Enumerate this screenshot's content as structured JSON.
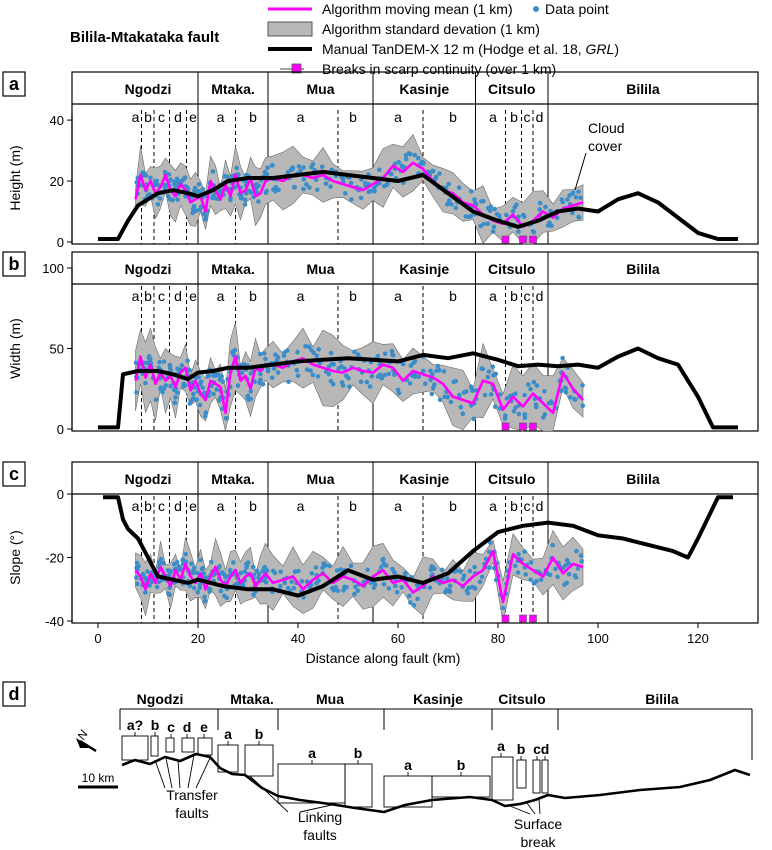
{
  "figure_title": "Bilila-Mtakataka fault",
  "legend": [
    {
      "key": "moving_mean",
      "label": "Algorithm moving mean (1 km)",
      "color": "#ff00ff"
    },
    {
      "key": "data_point",
      "label": "Data point",
      "color": "#3a8dc8"
    },
    {
      "key": "std",
      "label": "Algorithm standard devation (1 km)",
      "color": "#b8b8b8"
    },
    {
      "key": "manual",
      "label_pre": "Manual TanDEM-X 12 m (Hodge et al. 18, ",
      "label_em": "GRL",
      "label_post": ")",
      "color": "#000000"
    },
    {
      "key": "breaks",
      "label": "Breaks in scarp continuity (over 1 km)",
      "color": "#ff00ff"
    }
  ],
  "segments": [
    {
      "name": "Ngodzi",
      "start": 0,
      "end": 20
    },
    {
      "name": "Mtaka.",
      "start": 20,
      "end": 34
    },
    {
      "name": "Mua",
      "start": 34,
      "end": 55
    },
    {
      "name": "Kasinje",
      "start": 55,
      "end": 75.5
    },
    {
      "name": "Citsulo",
      "start": 75.5,
      "end": 90
    },
    {
      "name": "Bilila",
      "start": 90,
      "end": 128
    }
  ],
  "subsegments": [
    {
      "label": "a",
      "x": 7.5
    },
    {
      "label": "b",
      "x": 10
    },
    {
      "label": "c",
      "x": 12.7
    },
    {
      "label": "d",
      "x": 16
    },
    {
      "label": "e",
      "x": 19
    },
    {
      "label": "a",
      "x": 24.5
    },
    {
      "label": "b",
      "x": 31
    },
    {
      "label": "a",
      "x": 40.5
    },
    {
      "label": "b",
      "x": 51
    },
    {
      "label": "a",
      "x": 60
    },
    {
      "label": "b",
      "x": 71
    },
    {
      "label": "a",
      "x": 79
    },
    {
      "label": "b",
      "x": 83.2
    },
    {
      "label": "c",
      "x": 85.8
    },
    {
      "label": "d",
      "x": 88.3
    }
  ],
  "subsegment_dividers": [
    8.7,
    11.2,
    14.3,
    17.7,
    27.5,
    48,
    65,
    81.5,
    84.7,
    87
  ],
  "cloud_cover_annotation": "Cloud\ncover",
  "chart_data": [
    {
      "panel": "a",
      "type": "line",
      "ylabel": "Height (m)",
      "ylim": [
        0,
        42
      ],
      "yticks": [
        0,
        20,
        40
      ],
      "xlim": [
        -5,
        135
      ],
      "grid": false,
      "series": [
        {
          "name": "Manual TanDEM-X 12 m (Hodge et al. 18, GRL)",
          "x": [
            0,
            4,
            6,
            8,
            10,
            12,
            15,
            18,
            20,
            23,
            26,
            30,
            35,
            40,
            45,
            50,
            55,
            60,
            65,
            70,
            75,
            80,
            84,
            88,
            92,
            96,
            100,
            104,
            108,
            112,
            116,
            120,
            124,
            128
          ],
          "values": [
            1,
            1,
            7,
            12,
            14,
            16,
            17,
            16,
            15,
            17,
            20,
            21,
            21,
            22,
            23,
            22,
            21,
            20,
            22,
            16,
            10,
            7,
            5,
            7,
            10,
            11,
            10,
            14,
            16,
            13,
            8,
            3,
            1,
            1
          ]
        },
        {
          "name": "Algorithm moving mean (1 km)",
          "x": [
            7.5,
            8.5,
            9.5,
            10.5,
            11.5,
            12.5,
            13.5,
            14.5,
            15.5,
            16.5,
            17.5,
            18.5,
            19.5,
            20.5,
            21.5,
            22.5,
            23.5,
            24.5,
            25.5,
            26.5,
            27.5,
            28.5,
            29.5,
            30.5,
            31.5,
            32.5,
            33.5,
            35,
            37,
            39,
            41,
            43,
            45,
            47,
            49,
            51,
            53,
            55,
            57,
            59,
            61,
            63,
            65,
            67,
            69,
            71,
            73,
            75,
            77,
            79,
            81,
            83,
            85,
            87,
            89,
            91,
            93,
            95,
            97
          ],
          "values": [
            14,
            22,
            17,
            20,
            16,
            18,
            22,
            17,
            15,
            19,
            17,
            13,
            14,
            15,
            10,
            20,
            17,
            14,
            19,
            15,
            22,
            16,
            17,
            21,
            15,
            16,
            20,
            21,
            20,
            22,
            22,
            21,
            22,
            20,
            19,
            18,
            17,
            19,
            21,
            25,
            23,
            26,
            24,
            20,
            17,
            16,
            13,
            12,
            9,
            7,
            6,
            9,
            5,
            7,
            10,
            8,
            11,
            12,
            13
          ]
        }
      ],
      "breaks_km": [
        81.5,
        85,
        87
      ]
    },
    {
      "panel": "b",
      "type": "line",
      "ylabel": "Width (m)",
      "ylim": [
        0,
        100
      ],
      "yticks": [
        0,
        50,
        100
      ],
      "xlim": [
        -5,
        135
      ],
      "grid": false,
      "series": [
        {
          "name": "Manual TanDEM-X 12 m (Hodge et al. 18, GRL)",
          "x": [
            0,
            4,
            5,
            8,
            12,
            15,
            18,
            20,
            23,
            26,
            30,
            35,
            40,
            45,
            50,
            55,
            60,
            65,
            70,
            75,
            80,
            84,
            88,
            92,
            96,
            100,
            104,
            108,
            112,
            116,
            120,
            123,
            128
          ],
          "values": [
            1,
            1,
            34,
            36,
            36,
            34,
            31,
            35,
            36,
            38,
            38,
            40,
            42,
            43,
            44,
            43,
            42,
            46,
            44,
            47,
            43,
            39,
            40,
            39,
            40,
            38,
            45,
            50,
            44,
            40,
            20,
            1,
            1
          ]
        },
        {
          "name": "Algorithm moving mean (1 km)",
          "x": [
            7.5,
            8.5,
            9.5,
            10.5,
            11.5,
            12.5,
            13.5,
            14.5,
            15.5,
            16.5,
            17.5,
            18.5,
            19.5,
            20.5,
            21.5,
            22.5,
            23.5,
            24.5,
            25.5,
            26.5,
            27.5,
            28.5,
            29.5,
            30.5,
            31.5,
            32.5,
            33.5,
            35,
            37,
            39,
            41,
            43,
            45,
            47,
            49,
            51,
            53,
            55,
            57,
            59,
            61,
            63,
            65,
            67,
            69,
            71,
            73,
            75,
            77,
            79,
            81,
            83,
            85,
            87,
            89,
            91,
            93,
            95,
            97
          ],
          "values": [
            30,
            45,
            32,
            40,
            28,
            35,
            30,
            33,
            26,
            35,
            38,
            24,
            30,
            22,
            18,
            30,
            28,
            26,
            10,
            35,
            45,
            30,
            33,
            25,
            38,
            36,
            40,
            40,
            38,
            42,
            44,
            40,
            38,
            36,
            35,
            38,
            36,
            35,
            40,
            38,
            30,
            36,
            34,
            32,
            28,
            20,
            18,
            16,
            30,
            28,
            12,
            20,
            14,
            22,
            16,
            10,
            35,
            25,
            18
          ]
        }
      ],
      "breaks_km": [
        81.5,
        85,
        87
      ]
    },
    {
      "panel": "c",
      "type": "line",
      "ylabel": "Slope (°)",
      "ylim": [
        -40,
        0
      ],
      "yticks": [
        -40,
        -20,
        0
      ],
      "xlabel": "Distance along fault (km)",
      "xlim": [
        -5,
        135
      ],
      "xticks": [
        0,
        20,
        40,
        60,
        80,
        100,
        120
      ],
      "grid": false,
      "series": [
        {
          "name": "Manual TanDEM-X 12 m (Hodge et al. 18, GRL)",
          "x": [
            1,
            4,
            5,
            6,
            8,
            10,
            12,
            15,
            18,
            20,
            25,
            30,
            35,
            40,
            45,
            50,
            55,
            60,
            65,
            70,
            75,
            80,
            85,
            90,
            95,
            100,
            105,
            110,
            115,
            118,
            120,
            124,
            127
          ],
          "values": [
            -1,
            -1,
            -8,
            -11,
            -14,
            -20,
            -26,
            -27,
            -28,
            -27,
            -29,
            -30,
            -30,
            -32,
            -29,
            -24,
            -27,
            -26,
            -28,
            -25,
            -18,
            -12,
            -10,
            -9,
            -10,
            -13,
            -14,
            -16,
            -18,
            -20,
            -14,
            -1,
            -1
          ]
        },
        {
          "name": "Algorithm moving mean (1 km)",
          "x": [
            7.5,
            8.5,
            9.5,
            10.5,
            11.5,
            12.5,
            13.5,
            14.5,
            15.5,
            16.5,
            17.5,
            18.5,
            19.5,
            20.5,
            21.5,
            22.5,
            23.5,
            24.5,
            25.5,
            26.5,
            27.5,
            28.5,
            29.5,
            30.5,
            31.5,
            32.5,
            33.5,
            35,
            37,
            39,
            41,
            43,
            45,
            47,
            49,
            51,
            53,
            55,
            57,
            59,
            61,
            63,
            65,
            67,
            69,
            71,
            73,
            75,
            77,
            79,
            81,
            83,
            85,
            87,
            89,
            91,
            93,
            95,
            97
          ],
          "values": [
            -24,
            -26,
            -30,
            -25,
            -28,
            -23,
            -26,
            -29,
            -24,
            -27,
            -22,
            -26,
            -28,
            -25,
            -30,
            -26,
            -23,
            -27,
            -29,
            -26,
            -24,
            -28,
            -26,
            -25,
            -29,
            -27,
            -25,
            -28,
            -27,
            -26,
            -30,
            -27,
            -25,
            -28,
            -26,
            -27,
            -29,
            -26,
            -24,
            -28,
            -27,
            -31,
            -29,
            -26,
            -28,
            -27,
            -29,
            -26,
            -24,
            -18,
            -34,
            -19,
            -22,
            -24,
            -26,
            -20,
            -25,
            -22,
            -23
          ]
        }
      ],
      "breaks_km": [
        81.5,
        85,
        87
      ]
    }
  ],
  "panel_d": {
    "label": "d",
    "segments": [
      {
        "name": "Ngodzi",
        "subs": [
          "a?",
          "b",
          "c",
          "d",
          "e"
        ],
        "sub_label": "a?bcde"
      },
      {
        "name": "Mtaka.",
        "subs": [
          "a",
          "b"
        ]
      },
      {
        "name": "Mua",
        "subs": [
          "a",
          "b"
        ]
      },
      {
        "name": "Kasinje",
        "subs": [
          "a",
          "b"
        ]
      },
      {
        "name": "Citsulo",
        "subs": [
          "a",
          "b",
          "c",
          "d"
        ]
      },
      {
        "name": "Bilila",
        "subs": []
      }
    ],
    "scale_bar": "10 km",
    "north_symbol": "N",
    "annotations": [
      "Transfer\nfaults",
      "Linking\nfaults",
      "Surface\nbreak"
    ]
  }
}
